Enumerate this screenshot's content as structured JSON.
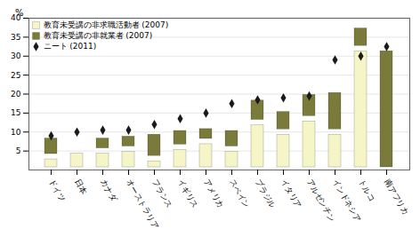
{
  "chart_data": {
    "type": "bar",
    "stacked": true,
    "categories": [
      "ドイツ",
      "日本",
      "カナダ",
      "オーストラリア",
      "フランス",
      "イギリス",
      "アメリカ",
      "スペイン",
      "ブラジル",
      "イタリア",
      "アルゼンチン",
      "インドネシア",
      "トルコ",
      "南アフリカ"
    ],
    "ylabel": "%",
    "ylim": [
      0,
      40
    ],
    "yticks": [
      5,
      10,
      15,
      20,
      25,
      30,
      35,
      40
    ],
    "grid": true,
    "legend": "upper left",
    "series": [
      {
        "name": "教育未受講の非求職活動者 (2007)",
        "type": "bar",
        "color": "#f5f5c8",
        "values": [
          3.5,
          5.0,
          5.0,
          5.5,
          3.0,
          6.0,
          7.5,
          5.5,
          12.5,
          10.0,
          13.5,
          10.0,
          32.0,
          0.0
        ]
      },
      {
        "name": "教育未受講の非就業者 (2007)",
        "type": "bar",
        "color": "#7a7a3a",
        "values": [
          5.5,
          0.0,
          4.0,
          4.0,
          7.0,
          5.0,
          4.0,
          5.5,
          6.5,
          6.0,
          7.0,
          11.0,
          6.0,
          32.0
        ]
      },
      {
        "name": "ニート (2011)",
        "type": "scatter",
        "marker": "diamond",
        "color": "#1a1a1a",
        "values": [
          9.0,
          10.0,
          10.5,
          10.5,
          12.0,
          13.5,
          15.0,
          17.5,
          18.5,
          19.0,
          19.5,
          29.0,
          30.0,
          32.5
        ]
      }
    ]
  }
}
